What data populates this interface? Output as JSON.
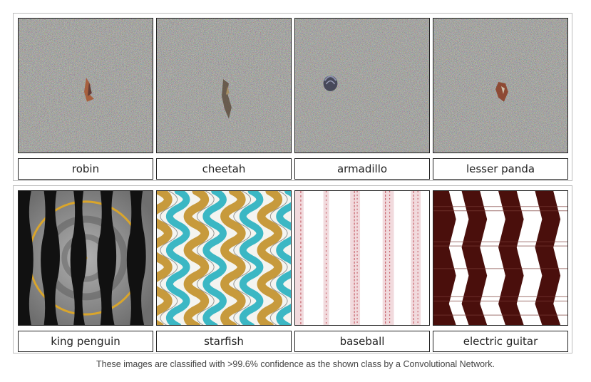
{
  "top_row": [
    {
      "label": "robin",
      "image": "noise-robin"
    },
    {
      "label": "cheetah",
      "image": "noise-cheetah"
    },
    {
      "label": "armadillo",
      "image": "noise-armadillo"
    },
    {
      "label": "lesser panda",
      "image": "noise-lesser-panda"
    }
  ],
  "bottom_row": [
    {
      "label": "king penguin",
      "image": "pattern-king-penguin"
    },
    {
      "label": "starfish",
      "image": "pattern-starfish"
    },
    {
      "label": "baseball",
      "image": "pattern-baseball"
    },
    {
      "label": "electric guitar",
      "image": "pattern-electric-guitar"
    }
  ],
  "caption": "These images are classified with >99.6% confidence as the shown class by a Convolutional Network.",
  "colors": {
    "noise_base": "#7f7f73",
    "penguin_gold": "#d9a52b",
    "starfish_cyan": "#3bb7c4",
    "starfish_gold": "#c79a3c",
    "baseball_red": "#c0505a",
    "guitar_brown": "#4a0f0c"
  }
}
